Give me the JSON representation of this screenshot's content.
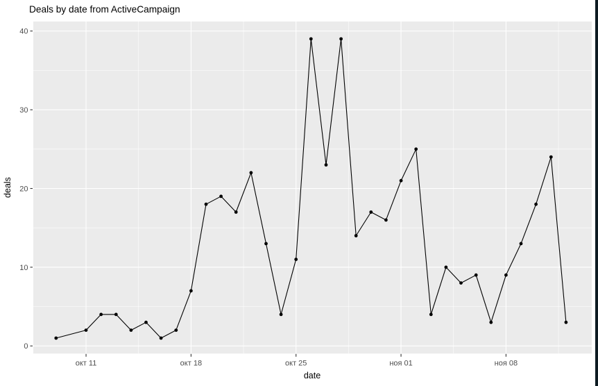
{
  "chart_data": {
    "type": "line",
    "title": "Deals by date from ActiveCampaign",
    "xlabel": "date",
    "ylabel": "deals",
    "ylim": [
      0,
      40
    ],
    "grid": true,
    "legend": false,
    "marker": "point",
    "line_color": "#000000",
    "x_tick_labels": [
      "окт 11",
      "окт 18",
      "окт 25",
      "ноя 01",
      "ноя 08"
    ],
    "x_ticks": [
      {
        "label": "окт 11",
        "day": 2
      },
      {
        "label": "окт 18",
        "day": 9
      },
      {
        "label": "окт 25",
        "day": 16
      },
      {
        "label": "ноя 01",
        "day": 23
      },
      {
        "label": "ноя 08",
        "day": 30
      }
    ],
    "x_minor_days": [
      5.5,
      12.5,
      19.5,
      26.5,
      33.5
    ],
    "y_ticks": [
      0,
      10,
      20,
      30,
      40
    ],
    "y_minor_ticks": [
      5,
      15,
      25,
      35
    ],
    "points": [
      {
        "date": "окт 09",
        "day": 0,
        "value": 1
      },
      {
        "date": "окт 11",
        "day": 2,
        "value": 2
      },
      {
        "date": "окт 12",
        "day": 3,
        "value": 4
      },
      {
        "date": "окт 13",
        "day": 4,
        "value": 4
      },
      {
        "date": "окт 14",
        "day": 5,
        "value": 2
      },
      {
        "date": "окт 15",
        "day": 6,
        "value": 3
      },
      {
        "date": "окт 16",
        "day": 7,
        "value": 1
      },
      {
        "date": "окт 17",
        "day": 8,
        "value": 2
      },
      {
        "date": "окт 18",
        "day": 9,
        "value": 7
      },
      {
        "date": "окт 19",
        "day": 10,
        "value": 18
      },
      {
        "date": "окт 20",
        "day": 11,
        "value": 19
      },
      {
        "date": "окт 21",
        "day": 12,
        "value": 17
      },
      {
        "date": "окт 22",
        "day": 13,
        "value": 22
      },
      {
        "date": "окт 23",
        "day": 14,
        "value": 13
      },
      {
        "date": "окт 24",
        "day": 15,
        "value": 4
      },
      {
        "date": "окт 25",
        "day": 16,
        "value": 11
      },
      {
        "date": "окт 26",
        "day": 17,
        "value": 39
      },
      {
        "date": "окт 27",
        "day": 18,
        "value": 23
      },
      {
        "date": "окт 28",
        "day": 19,
        "value": 39
      },
      {
        "date": "окт 29",
        "day": 20,
        "value": 14
      },
      {
        "date": "окт 30",
        "day": 21,
        "value": 17
      },
      {
        "date": "окт 31",
        "day": 22,
        "value": 16
      },
      {
        "date": "ноя 01",
        "day": 23,
        "value": 21
      },
      {
        "date": "ноя 02",
        "day": 24,
        "value": 25
      },
      {
        "date": "ноя 03",
        "day": 25,
        "value": 4
      },
      {
        "date": "ноя 04",
        "day": 26,
        "value": 10
      },
      {
        "date": "ноя 05",
        "day": 27,
        "value": 8
      },
      {
        "date": "ноя 06",
        "day": 28,
        "value": 9
      },
      {
        "date": "ноя 07",
        "day": 29,
        "value": 3
      },
      {
        "date": "ноя 08",
        "day": 30,
        "value": 9
      },
      {
        "date": "ноя 09",
        "day": 31,
        "value": 13
      },
      {
        "date": "ноя 10",
        "day": 32,
        "value": 18
      },
      {
        "date": "ноя 11",
        "day": 33,
        "value": 24
      },
      {
        "date": "ноя 12",
        "day": 34,
        "value": 3
      }
    ]
  },
  "colors": {
    "background": "#FFFFFF",
    "panel_background": "#EBEBEB",
    "gridline": "#FFFFFF",
    "series": "#000000",
    "tick_label": "#4D4D4D",
    "tick_mark": "#333333",
    "axis_title": "#000000",
    "title_text": "#000000",
    "window_edge": "#0D1B22"
  }
}
